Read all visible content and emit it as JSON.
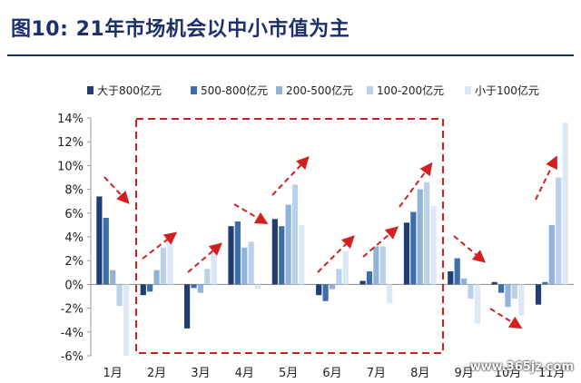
{
  "title": "图10:  21年市场机会以中小市值为主",
  "watermark": "www.365jz.com",
  "chart_data": {
    "type": "bar",
    "categories": [
      "1月",
      "2月",
      "3月",
      "4月",
      "5月",
      "6月",
      "7月",
      "8月",
      "9月",
      "10月",
      "11月"
    ],
    "ylim": [
      -6,
      14
    ],
    "yticks": [
      "-6%",
      "-4%",
      "-2%",
      "0%",
      "2%",
      "4%",
      "6%",
      "8%",
      "10%",
      "12%",
      "14%"
    ],
    "grid": false,
    "legend_position": "top",
    "series": [
      {
        "name": "大于800亿元",
        "color": "#1f3d73",
        "values": [
          7.4,
          -0.9,
          -3.7,
          4.9,
          5.5,
          -0.9,
          0.3,
          5.2,
          1.1,
          0.2,
          -1.7
        ]
      },
      {
        "name": "500-800亿元",
        "color": "#3c6eaa",
        "values": [
          5.6,
          -0.6,
          -0.3,
          5.3,
          4.9,
          -1.4,
          1.1,
          6.1,
          2.2,
          -0.7,
          0.2
        ]
      },
      {
        "name": "200-500亿元",
        "color": "#8fb3d9",
        "values": [
          1.2,
          1.2,
          -0.7,
          3.1,
          6.7,
          -0.4,
          3.2,
          8.0,
          0.5,
          -1.9,
          5.0
        ]
      },
      {
        "name": "100-200亿元",
        "color": "#b9d1ea",
        "values": [
          -1.8,
          3.1,
          1.3,
          3.6,
          8.4,
          1.3,
          3.2,
          8.6,
          -1.2,
          -1.2,
          9.0
        ]
      },
      {
        "name": "小于100亿元",
        "color": "#dce8f5",
        "values": [
          -6.0,
          3.9,
          2.8,
          -0.4,
          5.0,
          2.8,
          -1.6,
          6.6,
          -3.3,
          -2.6,
          13.6
        ]
      }
    ]
  }
}
